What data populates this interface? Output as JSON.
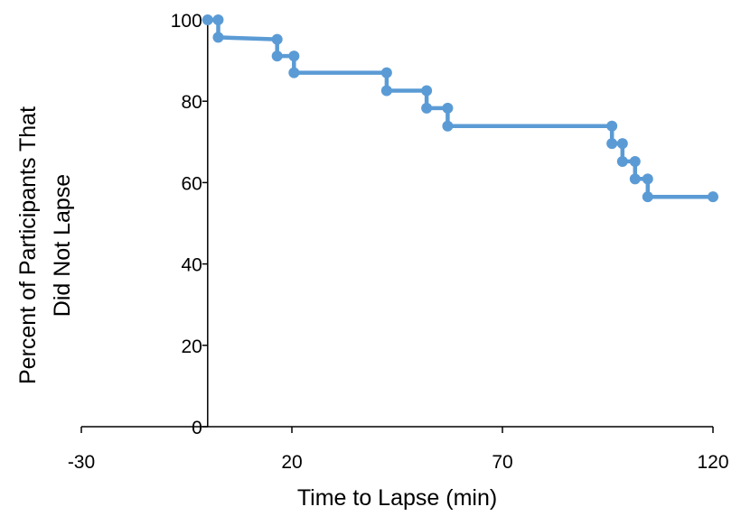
{
  "chart_data": {
    "type": "line",
    "step": true,
    "title": "",
    "xlabel": "Time to Lapse (min)",
    "ylabel_lines": [
      "Percent of Participants That",
      "Did Not Lapse"
    ],
    "xlim": [
      -30,
      120
    ],
    "ylim": [
      0,
      100
    ],
    "x_ticks": [
      -30,
      20,
      70,
      120
    ],
    "y_ticks": [
      0,
      20,
      40,
      60,
      80,
      100
    ],
    "y_axis_crosses_x_at": 0,
    "grid": false,
    "legend": "none",
    "series": [
      {
        "color": "#5B9BD5",
        "points": [
          [
            0,
            100
          ],
          [
            2.5,
            100
          ],
          [
            2.5,
            95.7
          ],
          [
            16.5,
            95.2
          ],
          [
            16.5,
            91.1
          ],
          [
            20.5,
            91.1
          ],
          [
            20.5,
            87
          ],
          [
            42.5,
            87
          ],
          [
            42.5,
            82.6
          ],
          [
            52,
            82.6
          ],
          [
            52,
            78.3
          ],
          [
            57,
            78.3
          ],
          [
            57,
            73.9
          ],
          [
            96,
            73.9
          ],
          [
            96,
            69.6
          ],
          [
            98.5,
            69.6
          ],
          [
            98.5,
            65.2
          ],
          [
            101.5,
            65.2
          ],
          [
            101.5,
            60.9
          ],
          [
            104.5,
            60.9
          ],
          [
            104.5,
            56.5
          ],
          [
            120,
            56.5
          ]
        ]
      }
    ]
  }
}
